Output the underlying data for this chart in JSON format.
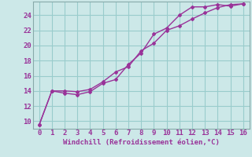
{
  "xlabel": "Windchill (Refroidissement éolien,°C)",
  "bg_color": "#cce8e8",
  "line_color": "#993399",
  "grid_color": "#99cccc",
  "xlim": [
    -0.5,
    16.5
  ],
  "ylim": [
    9.0,
    25.8
  ],
  "xticks": [
    0,
    1,
    2,
    3,
    4,
    5,
    6,
    7,
    8,
    9,
    10,
    11,
    12,
    13,
    14,
    15,
    16
  ],
  "yticks": [
    10,
    12,
    14,
    16,
    18,
    20,
    22,
    24
  ],
  "line1_x": [
    0,
    1,
    2,
    3,
    4,
    5,
    6,
    7,
    8,
    9,
    10,
    11,
    12,
    13,
    14,
    15,
    16
  ],
  "line1_y": [
    9.5,
    14.0,
    13.7,
    13.5,
    13.9,
    15.0,
    15.5,
    17.5,
    19.0,
    21.5,
    22.3,
    24.0,
    25.1,
    25.1,
    25.4,
    25.2,
    25.5
  ],
  "line2_x": [
    0,
    1,
    2,
    3,
    4,
    5,
    6,
    7,
    8,
    9,
    10,
    11,
    12,
    13,
    14,
    15,
    16
  ],
  "line2_y": [
    9.5,
    14.0,
    14.0,
    13.9,
    14.2,
    15.2,
    16.5,
    17.2,
    19.3,
    20.3,
    22.0,
    22.6,
    23.5,
    24.3,
    25.0,
    25.4,
    25.5
  ],
  "xlabel_fontsize": 6.5,
  "tick_fontsize": 6.5
}
